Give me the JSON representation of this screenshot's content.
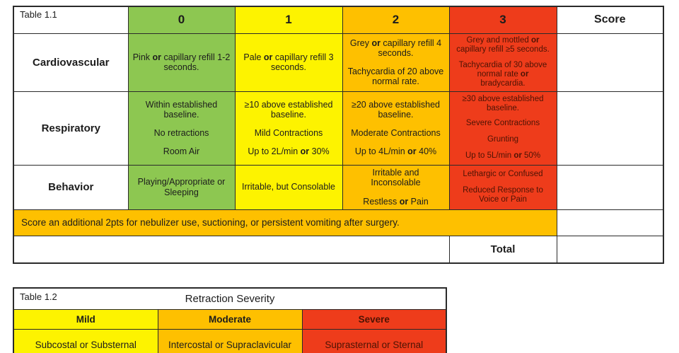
{
  "colors": {
    "green": "#8dc751",
    "yellow": "#fdf300",
    "orange": "#fec000",
    "red": "#ee3c1b"
  },
  "table1": {
    "label": "Table 1.1",
    "score_header": "Score",
    "col_headers": [
      {
        "label": "0",
        "color": "green"
      },
      {
        "label": "1",
        "color": "yellow"
      },
      {
        "label": "2",
        "color": "orange"
      },
      {
        "label": "3",
        "color": "red"
      }
    ],
    "rows": [
      {
        "label": "Cardiovascular",
        "cells": [
          {
            "lines": [
              "Pink **or** capillary refill 1-2 seconds."
            ]
          },
          {
            "lines": [
              "Pale **or** capillary refill 3 seconds."
            ]
          },
          {
            "lines": [
              "Grey **or** capillary refill 4 seconds.",
              "",
              "Tachycardia of 20 above normal rate."
            ]
          },
          {
            "lines": [
              "Grey and mottled **or** capillary refill ≥5 seconds.",
              "",
              "Tachycardia of 30 above normal rate **or** bradycardia."
            ]
          }
        ]
      },
      {
        "label": "Respiratory",
        "cells": [
          {
            "lines": [
              "Within established baseline.",
              "",
              "No retractions",
              "",
              "Room Air"
            ]
          },
          {
            "lines": [
              "≥10 above established baseline.",
              "",
              "Mild Contractions",
              "",
              "Up to 2L/min **or** 30%"
            ]
          },
          {
            "lines": [
              "≥20 above established baseline.",
              "",
              "Moderate Contractions",
              "",
              "Up to 4L/min **or** 40%"
            ]
          },
          {
            "lines": [
              "≥30 above established baseline.",
              "",
              "Severe Contractions",
              "",
              "Grunting",
              "",
              "Up to 5L/min **or** 50%"
            ]
          }
        ]
      },
      {
        "label": "Behavior",
        "cells": [
          {
            "lines": [
              "Playing/Appropriate or Sleeping"
            ]
          },
          {
            "lines": [
              "Irritable, but Consolable"
            ]
          },
          {
            "lines": [
              "Irritable and Inconsolable",
              "",
              "Restless **or** Pain"
            ]
          },
          {
            "lines": [
              "Lethargic or Confused",
              "",
              "Reduced Response to Voice or Pain"
            ]
          }
        ]
      }
    ],
    "additional_note": "Score an additional 2pts for nebulizer use, suctioning, or persistent vomiting after surgery.",
    "total_label": "Total"
  },
  "table2": {
    "label": "Table 1.2",
    "title": "Retraction Severity",
    "columns": [
      {
        "header": "Mild",
        "content": "Subcostal or Substernal",
        "color": "yellow"
      },
      {
        "header": "Moderate",
        "content": "Intercostal or Supraclavicular",
        "color": "orange"
      },
      {
        "header": "Severe",
        "content": "Suprasternal or Sternal",
        "color": "red"
      }
    ]
  }
}
